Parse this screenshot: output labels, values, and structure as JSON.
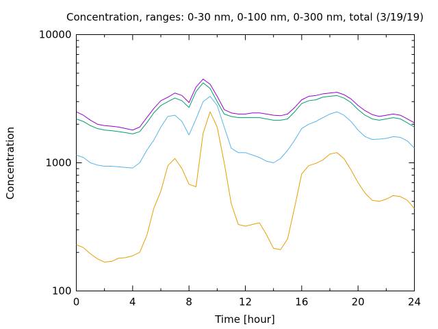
{
  "chart_data": {
    "type": "line",
    "title": "Concentration, ranges: 0-30 nm, 0-100 nm, 0-300 nm, total (3/19/19)",
    "xlabel": "Time [hour]",
    "ylabel": "Concentration",
    "xlim": [
      0,
      24
    ],
    "ylim": [
      100,
      10000
    ],
    "yscale": "log",
    "x_ticks": [
      0,
      4,
      8,
      12,
      16,
      20,
      24
    ],
    "x_tick_labels": [
      "0",
      "4",
      "8",
      "12",
      "16",
      "20",
      "24"
    ],
    "y_ticks": [
      100,
      1000,
      10000
    ],
    "y_tick_labels": [
      "100",
      "1000",
      "10000"
    ],
    "grid": false,
    "legend": "none",
    "series": [
      {
        "color": "#e69f00",
        "x": [
          0,
          0.5,
          1,
          1.5,
          2,
          2.5,
          3,
          3.5,
          4,
          4.5,
          5,
          5.5,
          6,
          6.5,
          7,
          7.5,
          8,
          8.5,
          9,
          9.5,
          10,
          10.5,
          11,
          11.5,
          12,
          12.5,
          13,
          13.5,
          14,
          14.5,
          15,
          15.5,
          16,
          16.5,
          17,
          17.5,
          18,
          18.5,
          19,
          19.5,
          20,
          20.5,
          21,
          21.5,
          22,
          22.5,
          23,
          23.5,
          24
        ],
        "values": [
          230,
          218,
          195,
          178,
          168,
          170,
          180,
          182,
          188,
          200,
          270,
          440,
          600,
          950,
          1080,
          900,
          680,
          650,
          1700,
          2500,
          1900,
          1000,
          480,
          330,
          320,
          330,
          340,
          275,
          215,
          210,
          255,
          450,
          820,
          950,
          990,
          1050,
          1170,
          1200,
          1080,
          880,
          700,
          580,
          510,
          500,
          520,
          555,
          545,
          510,
          440
        ]
      },
      {
        "color": "#56b4e9",
        "x": [
          0,
          0.5,
          1,
          1.5,
          2,
          2.5,
          3,
          3.5,
          4,
          4.5,
          5,
          5.5,
          6,
          6.5,
          7,
          7.5,
          8,
          8.5,
          9,
          9.5,
          10,
          10.5,
          11,
          11.5,
          12,
          12.5,
          13,
          13.5,
          14,
          14.5,
          15,
          15.5,
          16,
          16.5,
          17,
          17.5,
          18,
          18.5,
          19,
          19.5,
          20,
          20.5,
          21,
          21.5,
          22,
          22.5,
          23,
          23.5,
          24
        ],
        "values": [
          1150,
          1100,
          1000,
          960,
          940,
          940,
          930,
          920,
          910,
          1000,
          1250,
          1500,
          1900,
          2300,
          2350,
          2100,
          1650,
          2200,
          3000,
          3300,
          2800,
          1900,
          1300,
          1200,
          1200,
          1150,
          1100,
          1030,
          1000,
          1080,
          1250,
          1500,
          1850,
          2000,
          2100,
          2250,
          2400,
          2500,
          2350,
          2100,
          1800,
          1600,
          1520,
          1530,
          1550,
          1600,
          1580,
          1480,
          1300
        ]
      },
      {
        "color": "#009e73",
        "x": [
          0,
          0.5,
          1,
          1.5,
          2,
          2.5,
          3,
          3.5,
          4,
          4.5,
          5,
          5.5,
          6,
          6.5,
          7,
          7.5,
          8,
          8.5,
          9,
          9.5,
          10,
          10.5,
          11,
          11.5,
          12,
          12.5,
          13,
          13.5,
          14,
          14.5,
          15,
          15.5,
          16,
          16.5,
          17,
          17.5,
          18,
          18.5,
          19,
          19.5,
          20,
          20.5,
          21,
          21.5,
          22,
          22.5,
          23,
          23.5,
          24
        ],
        "values": [
          2200,
          2100,
          1950,
          1850,
          1800,
          1780,
          1750,
          1720,
          1680,
          1750,
          2050,
          2450,
          2800,
          3000,
          3200,
          3050,
          2700,
          3600,
          4200,
          3800,
          3000,
          2400,
          2300,
          2250,
          2250,
          2250,
          2250,
          2200,
          2150,
          2150,
          2200,
          2500,
          2900,
          3050,
          3100,
          3250,
          3300,
          3350,
          3200,
          2950,
          2600,
          2350,
          2200,
          2150,
          2200,
          2250,
          2200,
          2050,
          1900
        ]
      },
      {
        "color": "#9400d3",
        "x": [
          0,
          0.5,
          1,
          1.5,
          2,
          2.5,
          3,
          3.5,
          4,
          4.5,
          5,
          5.5,
          6,
          6.5,
          7,
          7.5,
          8,
          8.5,
          9,
          9.5,
          10,
          10.5,
          11,
          11.5,
          12,
          12.5,
          13,
          13.5,
          14,
          14.5,
          15,
          15.5,
          16,
          16.5,
          17,
          17.5,
          18,
          18.5,
          19,
          19.5,
          20,
          20.5,
          21,
          21.5,
          22,
          22.5,
          23,
          23.5,
          24
        ],
        "values": [
          2500,
          2350,
          2150,
          2000,
          1950,
          1930,
          1900,
          1850,
          1800,
          1900,
          2250,
          2650,
          3050,
          3250,
          3500,
          3350,
          2950,
          3900,
          4500,
          4100,
          3300,
          2600,
          2450,
          2400,
          2400,
          2450,
          2450,
          2400,
          2350,
          2330,
          2400,
          2700,
          3100,
          3300,
          3350,
          3450,
          3500,
          3550,
          3400,
          3150,
          2800,
          2550,
          2380,
          2300,
          2350,
          2400,
          2350,
          2200,
          2050
        ]
      }
    ]
  }
}
